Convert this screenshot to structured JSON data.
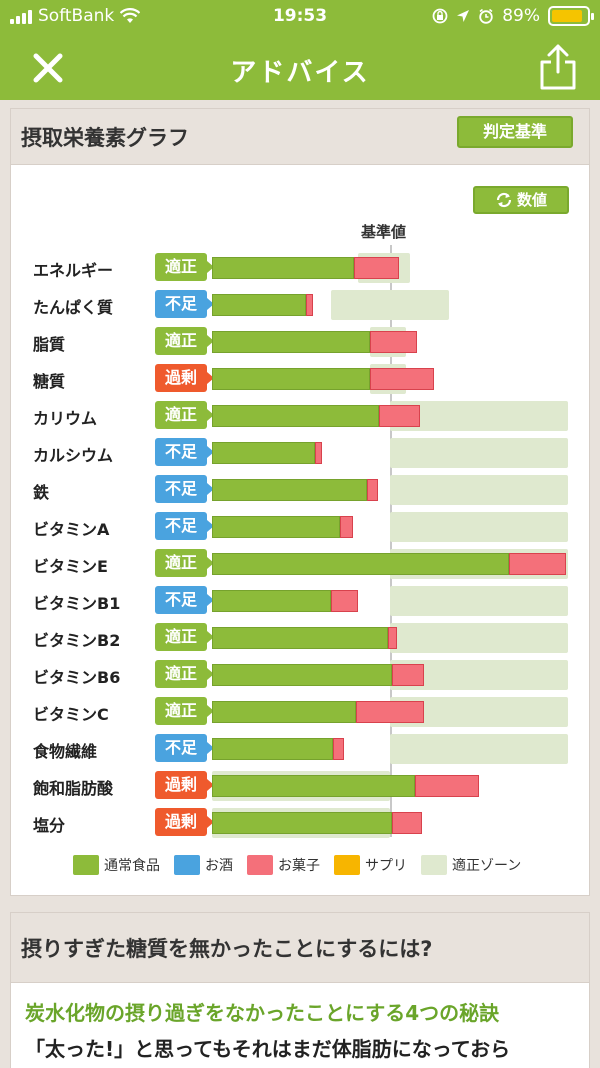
{
  "status_bar": {
    "carrier": "SoftBank",
    "time": "19:53",
    "battery": "89%",
    "battery_level": 0.89
  },
  "nav": {
    "title": "アドバイス"
  },
  "nutrient_card": {
    "title": "摂取栄養素グラフ",
    "criteria_button": "判定基準",
    "values_button": "数値",
    "baseline_label": "基準値"
  },
  "chart_data": {
    "type": "bar",
    "orientation": "horizontal",
    "stacked": true,
    "title": "摂取栄養素グラフ",
    "reference_label": "基準値",
    "units": "percent of reference value (基準値 = 100)",
    "categories": [
      "エネルギー",
      "たんぱく質",
      "脂質",
      "糖質",
      "カリウム",
      "カルシウム",
      "鉄",
      "ビタミンA",
      "ビタミンE",
      "ビタミンB1",
      "ビタミンB2",
      "ビタミンB6",
      "ビタミンC",
      "食物繊維",
      "飽和脂肪酸",
      "塩分"
    ],
    "judgments": [
      "適正",
      "不足",
      "適正",
      "過剰",
      "適正",
      "不足",
      "不足",
      "不足",
      "適正",
      "不足",
      "適正",
      "適正",
      "適正",
      "不足",
      "過剰",
      "過剰"
    ],
    "series": [
      {
        "name": "通常食品",
        "color": "#8dbb3a",
        "values": [
          80,
          53,
          89,
          89,
          94,
          58,
          87,
          72,
          167,
          67,
          99,
          101,
          81,
          68,
          114,
          101
        ]
      },
      {
        "name": "お菓子",
        "color": "#f4707a",
        "values": [
          25,
          4,
          26,
          36,
          23,
          4,
          6,
          7,
          32,
          15,
          5,
          18,
          38,
          6,
          36,
          17
        ]
      }
    ],
    "zones": [
      [
        82,
        111
      ],
      [
        67,
        133
      ],
      [
        89,
        109
      ],
      [
        89,
        109
      ],
      [
        100,
        200
      ],
      [
        100,
        200
      ],
      [
        100,
        200
      ],
      [
        100,
        200
      ],
      [
        100,
        200
      ],
      [
        100,
        200
      ],
      [
        100,
        200
      ],
      [
        100,
        200
      ],
      [
        100,
        200
      ],
      [
        100,
        200
      ],
      [
        0,
        100
      ],
      [
        0,
        100
      ]
    ],
    "xlim": [
      0,
      200
    ],
    "legend": [
      {
        "label": "通常食品",
        "color": "#8dbb3a"
      },
      {
        "label": "お酒",
        "color": "#4aa3df"
      },
      {
        "label": "お菓子",
        "color": "#f4707a"
      },
      {
        "label": "サプリ",
        "color": "#f7b500"
      },
      {
        "label": "適正ゾーン",
        "color": "#dfe9cf"
      }
    ]
  },
  "badge_colors": {
    "適正": "#8dbb3a",
    "不足": "#4aa3df",
    "過剰": "#ef5a2d"
  },
  "article_card": {
    "title": "摂りすぎた糖質を無かったことにするには?",
    "link": "炭水化物の摂り過ぎをなかったことにする4つの秘訣",
    "text": "「太った!」と思ってもそれはまだ体脂肪になっておら"
  }
}
